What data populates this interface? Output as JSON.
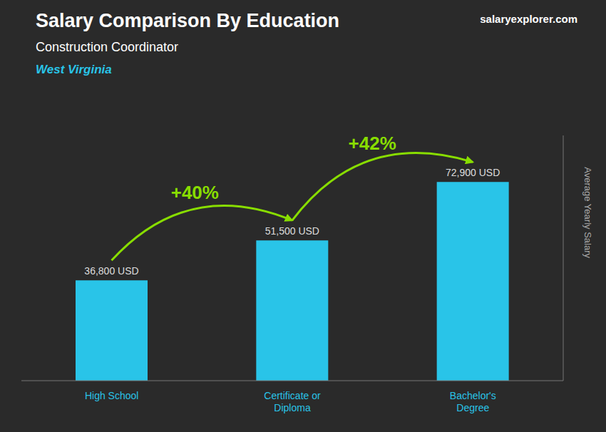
{
  "chart_data": {
    "type": "bar",
    "title": "Salary Comparison By Education",
    "subtitle": "Construction Coordinator",
    "location": "West Virginia",
    "brand": "salaryexplorer.com",
    "categories": [
      "High School",
      "Certificate or\nDiploma",
      "Bachelor's\nDegree"
    ],
    "values": [
      36800,
      51500,
      72900
    ],
    "value_labels": [
      "36,800 USD",
      "51,500 USD",
      "72,900 USD"
    ],
    "data_labels": true,
    "color": "#29C4E8",
    "ylabel": "Average Yearly Salary",
    "ylim": [
      0,
      90000
    ],
    "tick_labels": "x",
    "grid": false,
    "annotations": [
      {
        "text": "+40%",
        "color": "#88DD00"
      },
      {
        "text": "+42%",
        "color": "#88DD00"
      }
    ]
  }
}
